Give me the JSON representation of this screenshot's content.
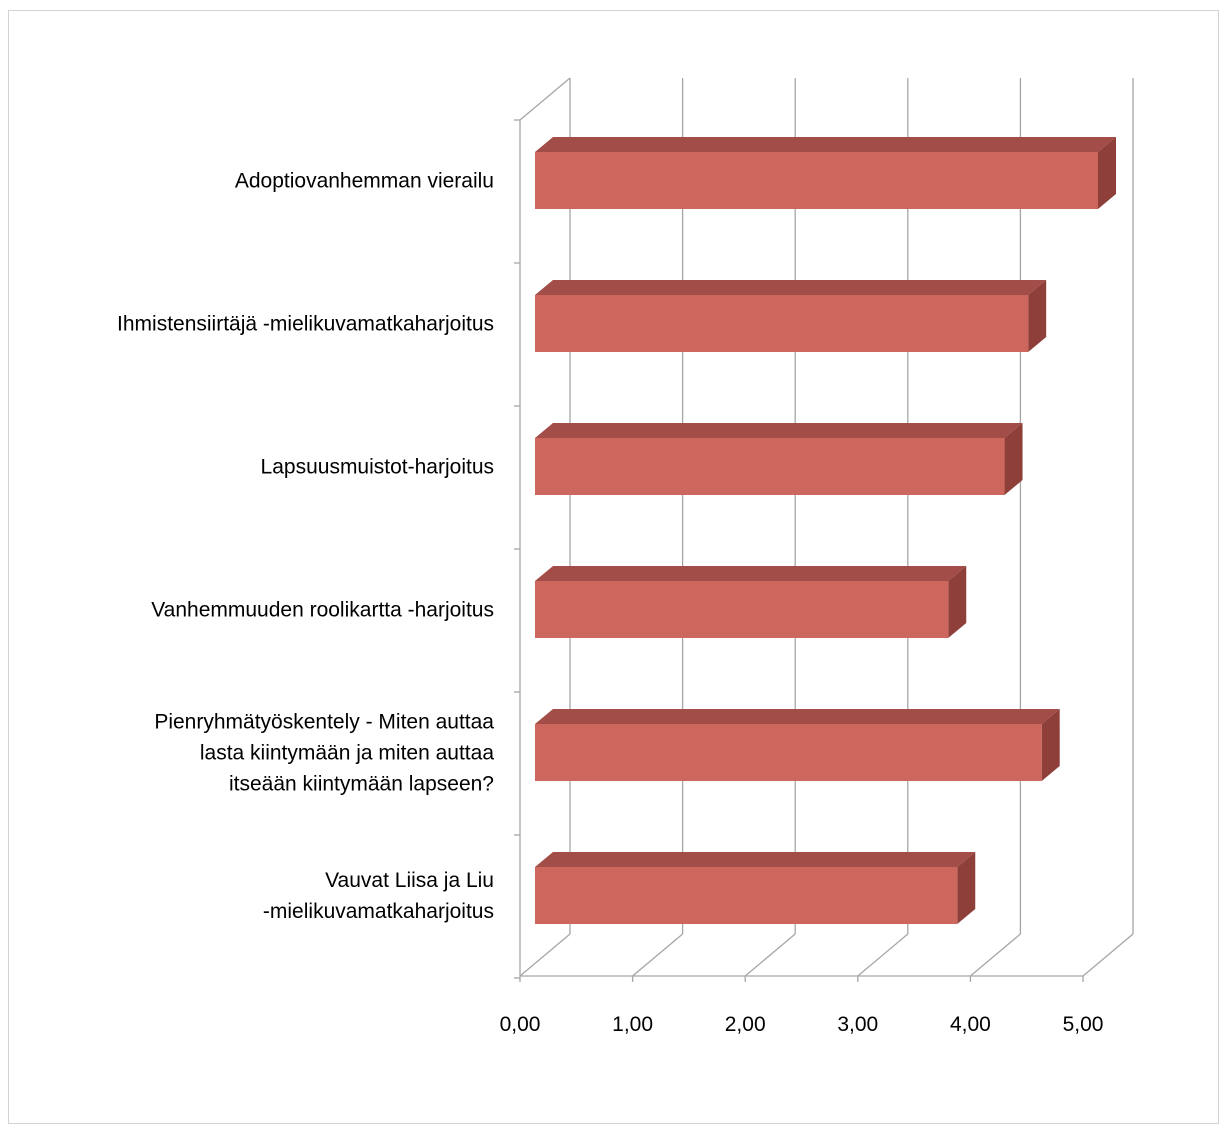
{
  "chart_data": {
    "type": "bar",
    "orientation": "horizontal",
    "three_d": true,
    "categories": [
      "Adoptiovanhemman vierailu",
      "Ihmistensiirtäjä -mielikuvamatkaharjoitus",
      "Lapsuusmuistot-harjoitus",
      "Vanhemmuuden roolikartta -harjoitus",
      "Pienryhmätyöskentely - Miten auttaa lasta kiintymään ja miten auttaa itseään kiintymään lapseen?",
      "Vauvat Liisa ja Liu -mielikuvamatkaharjoitus"
    ],
    "category_label_lines": [
      [
        "Adoptiovanhemman vierailu"
      ],
      [
        "Ihmistensiirtäjä -mielikuvamatkaharjoitus"
      ],
      [
        "Lapsuusmuistot-harjoitus"
      ],
      [
        "Vanhemmuuden roolikartta -harjoitus"
      ],
      [
        "Pienryhmätyöskentely - Miten auttaa",
        "lasta kiintymään ja miten auttaa",
        "itseään kiintymään lapseen?"
      ],
      [
        "Vauvat Liisa ja Liu",
        "-mielikuvamatkaharjoitus"
      ]
    ],
    "values": [
      5.0,
      4.38,
      4.17,
      3.67,
      4.5,
      3.75
    ],
    "xlim": [
      0,
      5
    ],
    "x_ticks": [
      "0,00",
      "1,00",
      "2,00",
      "3,00",
      "4,00",
      "5,00"
    ],
    "grid": true,
    "legend": "none",
    "colors": {
      "bar_front": "#cd665d",
      "bar_top": "#a24d47",
      "bar_side": "#8f3f39",
      "grid": "#a6a6a6",
      "axis": "#a6a6a6"
    }
  }
}
